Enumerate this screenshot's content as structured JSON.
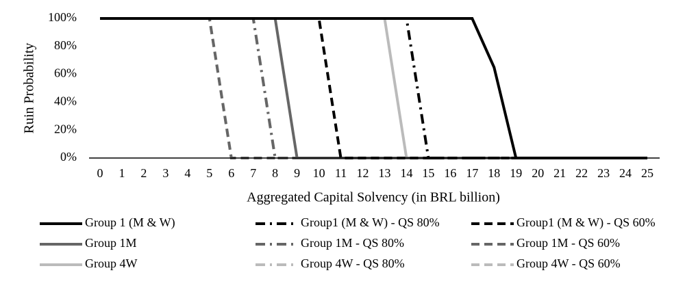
{
  "chart_data": {
    "type": "line",
    "x_label": "Aggregated Capital Solvency (in BRL billion)",
    "y_label": "Ruin Probability",
    "x": [
      0,
      1,
      2,
      3,
      4,
      5,
      6,
      7,
      8,
      9,
      10,
      11,
      12,
      13,
      14,
      15,
      16,
      17,
      18,
      19,
      20,
      21,
      22,
      23,
      24,
      25
    ],
    "xlim": [
      0,
      25
    ],
    "xticks": [
      0,
      1,
      2,
      3,
      4,
      5,
      6,
      7,
      8,
      9,
      10,
      11,
      12,
      13,
      14,
      15,
      16,
      17,
      18,
      19,
      20,
      21,
      22,
      23,
      24,
      25
    ],
    "ylim": [
      0,
      100
    ],
    "yticks": [
      {
        "value": 0,
        "label": "0%"
      },
      {
        "value": 20,
        "label": "20%"
      },
      {
        "value": 40,
        "label": "40%"
      },
      {
        "value": 60,
        "label": "60%"
      },
      {
        "value": 80,
        "label": "80%"
      },
      {
        "value": 100,
        "label": "100%"
      }
    ],
    "grid": false,
    "legend": "bottom",
    "series": [
      {
        "name": "Group 1 (M & W)",
        "color": "#000000",
        "line_style": "solid",
        "values": [
          100,
          100,
          100,
          100,
          100,
          100,
          100,
          100,
          100,
          100,
          100,
          100,
          100,
          100,
          100,
          100,
          100,
          100,
          65,
          0,
          0,
          0,
          0,
          0,
          0,
          0
        ]
      },
      {
        "name": "Group1 (M & W) - QS 80%",
        "color": "#000000",
        "line_style": "dash-dot",
        "values": [
          100,
          100,
          100,
          100,
          100,
          100,
          100,
          100,
          100,
          100,
          100,
          100,
          100,
          100,
          100,
          0,
          0,
          0,
          0,
          0,
          0,
          0,
          0,
          0,
          0,
          0
        ]
      },
      {
        "name": "Group1 (M & W) - QS 60%",
        "color": "#000000",
        "line_style": "dashed",
        "values": [
          100,
          100,
          100,
          100,
          100,
          100,
          100,
          100,
          100,
          100,
          100,
          0,
          0,
          0,
          0,
          0,
          0,
          0,
          0,
          0,
          0,
          0,
          0,
          0,
          0,
          0
        ]
      },
      {
        "name": "Group 1M",
        "color": "#666666",
        "line_style": "solid",
        "values": [
          100,
          100,
          100,
          100,
          100,
          100,
          100,
          100,
          100,
          0,
          0,
          0,
          0,
          0,
          0,
          0,
          0,
          0,
          0,
          0,
          0,
          0,
          0,
          0,
          0,
          0
        ]
      },
      {
        "name": "Group 1M - QS 80%",
        "color": "#666666",
        "line_style": "dash-dot",
        "values": [
          100,
          100,
          100,
          100,
          100,
          100,
          100,
          100,
          0,
          0,
          0,
          0,
          0,
          0,
          0,
          0,
          0,
          0,
          0,
          0,
          0,
          0,
          0,
          0,
          0,
          0
        ]
      },
      {
        "name": "Group 1M - QS 60%",
        "color": "#666666",
        "line_style": "dashed",
        "values": [
          100,
          100,
          100,
          100,
          100,
          100,
          0,
          0,
          0,
          0,
          0,
          0,
          0,
          0,
          0,
          0,
          0,
          0,
          0,
          0,
          0,
          0,
          0,
          0,
          0,
          0
        ]
      },
      {
        "name": "Group 4W",
        "color": "#bbbbbb",
        "line_style": "solid",
        "values": [
          100,
          100,
          100,
          100,
          100,
          100,
          100,
          100,
          100,
          100,
          100,
          100,
          100,
          100,
          0,
          0,
          0,
          0,
          0,
          0,
          0,
          0,
          0,
          0,
          0,
          0
        ]
      },
      {
        "name": "Group 4W - QS 80%",
        "color": "#bbbbbb",
        "line_style": "dash-dot",
        "values": [
          100,
          100,
          100,
          100,
          100,
          100,
          100,
          100,
          0,
          0,
          0,
          0,
          0,
          0,
          0,
          0,
          0,
          0,
          0,
          0,
          0,
          0,
          0,
          0,
          0,
          0
        ]
      },
      {
        "name": "Group 4W - QS 60%",
        "color": "#bbbbbb",
        "line_style": "dashed",
        "values": [
          100,
          100,
          100,
          100,
          100,
          100,
          0,
          0,
          0,
          0,
          0,
          0,
          0,
          0,
          0,
          0,
          0,
          0,
          0,
          0,
          0,
          0,
          0,
          0,
          0,
          0
        ]
      }
    ]
  }
}
